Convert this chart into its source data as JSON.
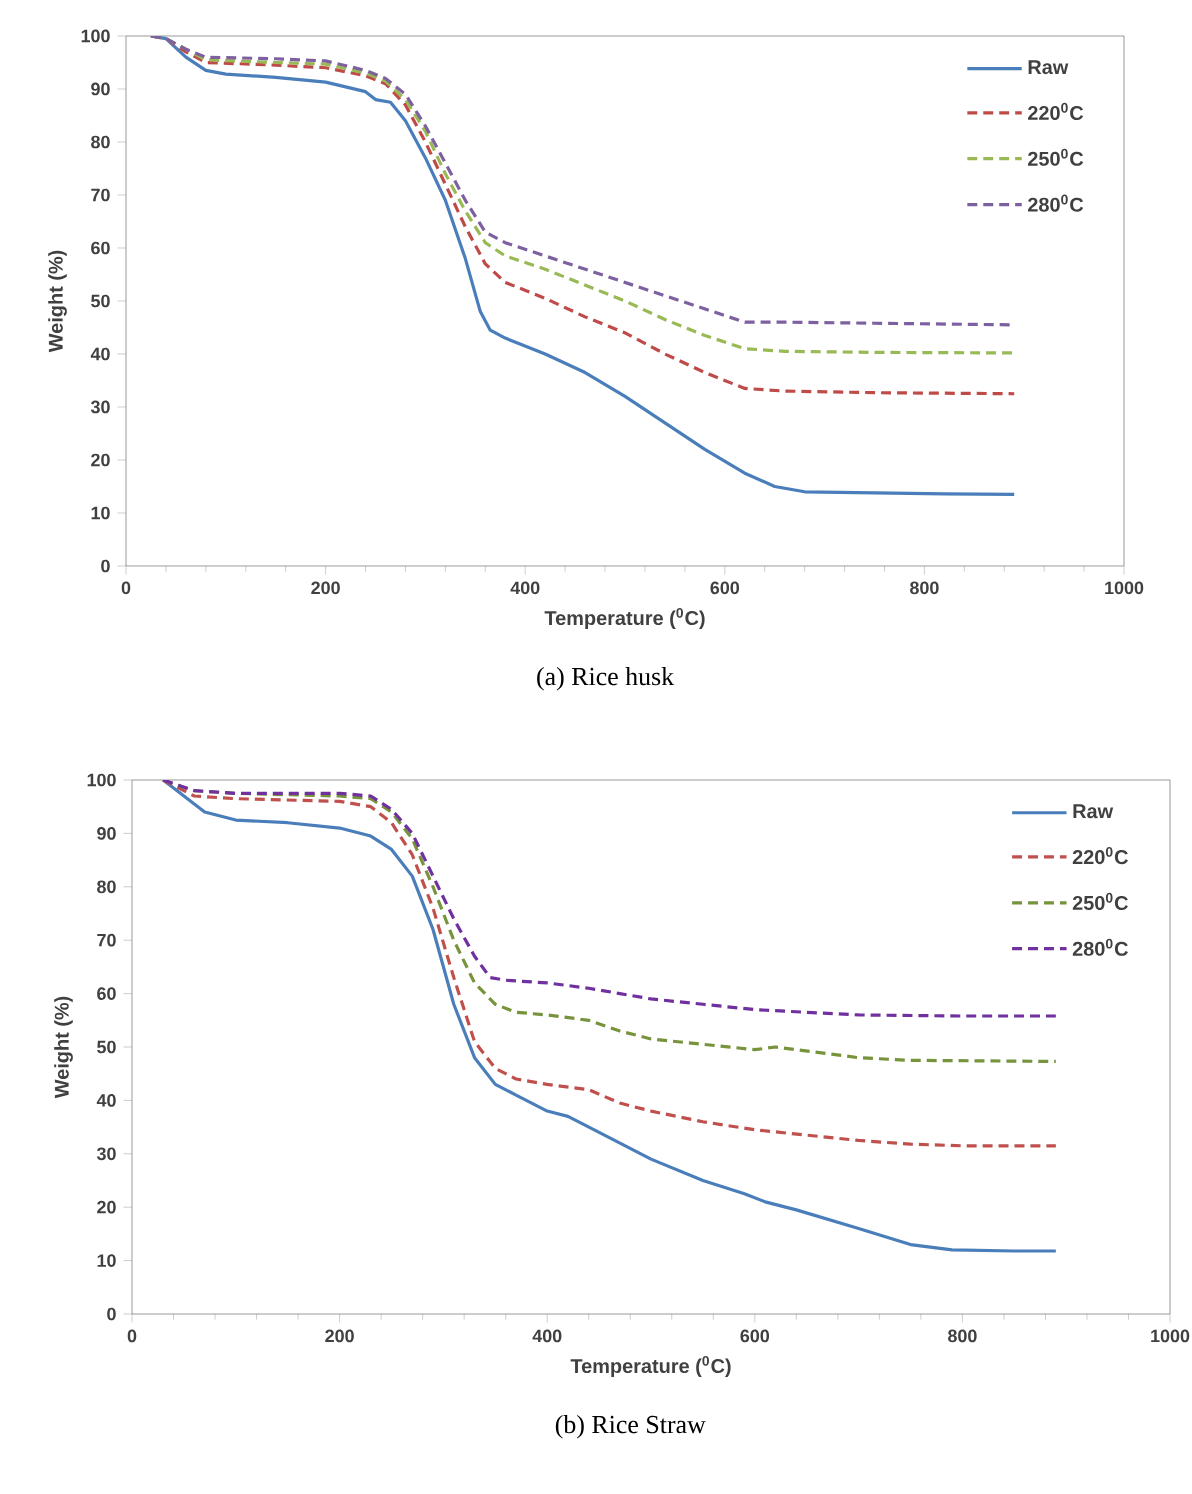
{
  "chart_data": [
    {
      "type": "line",
      "xlabel": "Temperature ($^{0}$C)",
      "ylabel": "Weight (%)",
      "annotations": [
        "(a) Rice husk"
      ],
      "xlim": [
        0,
        1000
      ],
      "xticks": [
        0,
        200,
        400,
        600,
        800,
        1000
      ],
      "ylim": [
        0,
        100
      ],
      "yticks": [
        0,
        10,
        20,
        30,
        40,
        50,
        60,
        70,
        80,
        90,
        100
      ],
      "legend": "top right",
      "series": [
        {
          "name": "Raw",
          "color": "#4a7ebb",
          "line_style": "solid",
          "x": [
            25,
            40,
            60,
            80,
            100,
            150,
            200,
            240,
            250,
            265,
            280,
            300,
            320,
            340,
            355,
            365,
            380,
            420,
            460,
            500,
            540,
            580,
            620,
            650,
            680,
            750,
            820,
            890
          ],
          "values": [
            100,
            99.5,
            96,
            93.5,
            92.8,
            92.2,
            91.3,
            89.5,
            88,
            87.5,
            84,
            77,
            69,
            58,
            48,
            44.5,
            43,
            40,
            36.5,
            32,
            27,
            22,
            17.5,
            15,
            14,
            13.8,
            13.6,
            13.5
          ]
        },
        {
          "name": "220$^{0}$C",
          "color": "#be4b48",
          "line_style": "dashed",
          "x": [
            25,
            40,
            60,
            80,
            150,
            200,
            240,
            260,
            280,
            300,
            320,
            340,
            360,
            380,
            420,
            460,
            500,
            540,
            580,
            620,
            660,
            750,
            890
          ],
          "values": [
            100,
            99.5,
            97,
            95,
            94.5,
            94,
            92.5,
            91,
            87,
            80,
            72,
            64,
            57,
            53.5,
            50.5,
            47,
            44,
            40,
            36.5,
            33.5,
            33,
            32.7,
            32.5
          ]
        },
        {
          "name": "250$^{0}$C",
          "color": "#98b954",
          "line_style": "dashed",
          "x": [
            25,
            40,
            60,
            80,
            150,
            200,
            240,
            260,
            280,
            300,
            320,
            340,
            360,
            380,
            420,
            460,
            500,
            540,
            580,
            620,
            660,
            750,
            890
          ],
          "values": [
            100,
            99.5,
            97.5,
            95.5,
            95,
            94.7,
            93,
            91.5,
            88,
            82,
            74,
            67,
            61,
            58.5,
            56,
            53,
            50,
            46.5,
            43.5,
            41,
            40.5,
            40.3,
            40.2
          ]
        },
        {
          "name": "280$^{0}$C",
          "color": "#7d60a0",
          "line_style": "dashed",
          "x": [
            25,
            40,
            60,
            80,
            150,
            200,
            240,
            260,
            280,
            300,
            320,
            340,
            360,
            380,
            420,
            460,
            500,
            540,
            580,
            620,
            660,
            750,
            890
          ],
          "values": [
            100,
            99.5,
            97.5,
            96,
            95.7,
            95.3,
            93.5,
            92,
            89,
            83,
            76,
            69,
            63,
            61,
            58.5,
            56,
            53.5,
            51,
            48.5,
            46,
            46,
            45.8,
            45.5
          ]
        }
      ]
    },
    {
      "type": "line",
      "xlabel": "Temperature ($^{0}$C)",
      "ylabel": "Weight (%)",
      "annotations": [
        "(b) Rice Straw"
      ],
      "xlim": [
        0,
        1000
      ],
      "xticks": [
        0,
        200,
        400,
        600,
        800,
        1000
      ],
      "ylim": [
        0,
        100
      ],
      "yticks": [
        0,
        10,
        20,
        30,
        40,
        50,
        60,
        70,
        80,
        90,
        100
      ],
      "legend": "top right",
      "series": [
        {
          "name": "Raw",
          "color": "#4a7ebb",
          "line_style": "solid",
          "x": [
            30,
            50,
            70,
            100,
            150,
            200,
            230,
            250,
            270,
            290,
            310,
            330,
            350,
            370,
            400,
            420,
            450,
            500,
            550,
            590,
            610,
            640,
            700,
            750,
            790,
            850,
            890
          ],
          "values": [
            100,
            97,
            94,
            92.5,
            92,
            91,
            89.5,
            87,
            82,
            72,
            58,
            48,
            43,
            41,
            38,
            37,
            34,
            29,
            25,
            22.5,
            21,
            19.5,
            16,
            13,
            12,
            11.8,
            11.8
          ]
        },
        {
          "name": "220$^{0}$C",
          "color": "#c0504d",
          "line_style": "dashed",
          "x": [
            30,
            60,
            100,
            200,
            230,
            250,
            270,
            290,
            310,
            330,
            350,
            370,
            400,
            440,
            470,
            500,
            550,
            600,
            650,
            700,
            750,
            800,
            890
          ],
          "values": [
            100,
            97,
            96.5,
            96,
            95,
            92,
            86,
            76,
            63,
            51,
            46,
            44,
            43,
            42,
            39.5,
            38,
            36,
            34.5,
            33.5,
            32.5,
            31.8,
            31.5,
            31.5
          ]
        },
        {
          "name": "250$^{0}$C",
          "color": "#77933c",
          "line_style": "dashed",
          "x": [
            30,
            60,
            100,
            200,
            230,
            250,
            270,
            290,
            310,
            330,
            350,
            370,
            400,
            440,
            470,
            500,
            550,
            600,
            620,
            700,
            750,
            890
          ],
          "values": [
            100,
            98,
            97.5,
            97,
            96.5,
            94,
            89,
            80,
            70,
            62,
            58,
            56.5,
            56,
            55,
            53,
            51.5,
            50.5,
            49.5,
            50,
            48,
            47.5,
            47.3
          ]
        },
        {
          "name": "280$^{0}$C",
          "color": "#7030a0",
          "line_style": "dashed",
          "x": [
            30,
            60,
            100,
            200,
            230,
            250,
            270,
            290,
            310,
            330,
            345,
            360,
            400,
            440,
            470,
            500,
            550,
            600,
            700,
            800,
            890
          ],
          "values": [
            100,
            98,
            97.5,
            97.5,
            97,
            94.5,
            90,
            82,
            74,
            67,
            63,
            62.5,
            62,
            61,
            60,
            59,
            58,
            57,
            56,
            55.8,
            55.8
          ]
        }
      ]
    }
  ]
}
